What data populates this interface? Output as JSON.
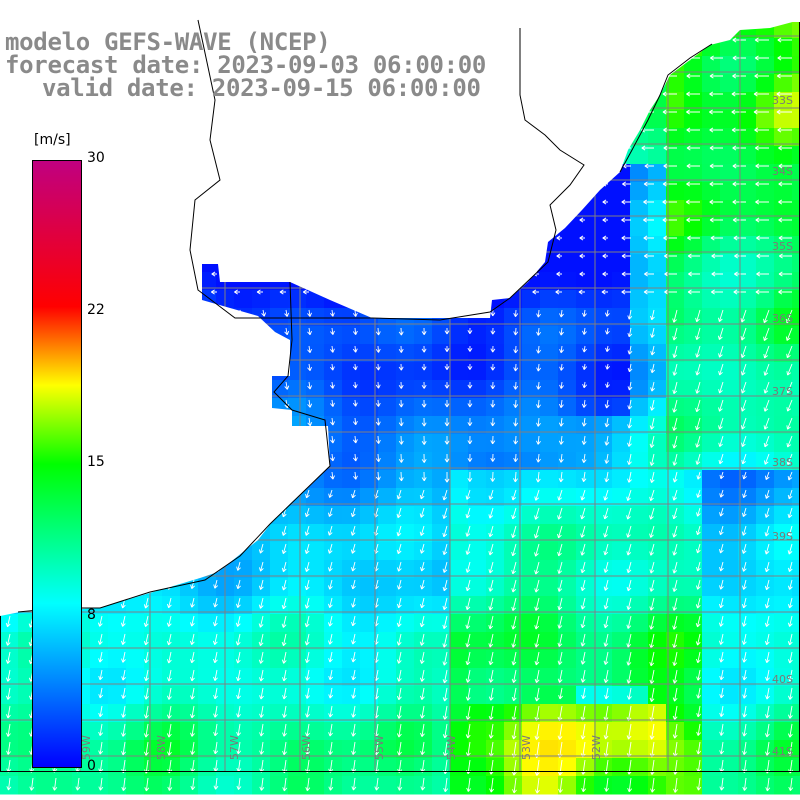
{
  "map": {
    "title_model": "modelo GEFS-WAVE (NCEP)",
    "title_forecast": "forecast date: 2023-09-03 06:00:00",
    "title_valid": "valid date: 2023-09-15 06:00:00",
    "colorbar_unit": "[m/s]",
    "colorbar_ticks": [
      "30",
      "22",
      "15",
      "8",
      "0"
    ],
    "lon_labels": [
      "59W",
      "58W",
      "57W",
      "56W",
      "55W",
      "54W",
      "53W",
      "52W"
    ],
    "lat_labels": [
      "33S",
      "34S",
      "35S",
      "36S",
      "37S",
      "38S",
      "39S",
      "40S",
      "41S"
    ],
    "colors": {
      "land": "#ffffff",
      "grid": "#808080",
      "coast": "#000000",
      "arrows": "#ffffff",
      "title": "#8a8a8a",
      "colorbar_stops": [
        "#0000ff",
        "#00ffff",
        "#00ff00",
        "#ffff00",
        "#ff0000",
        "#c00080"
      ]
    }
  }
}
